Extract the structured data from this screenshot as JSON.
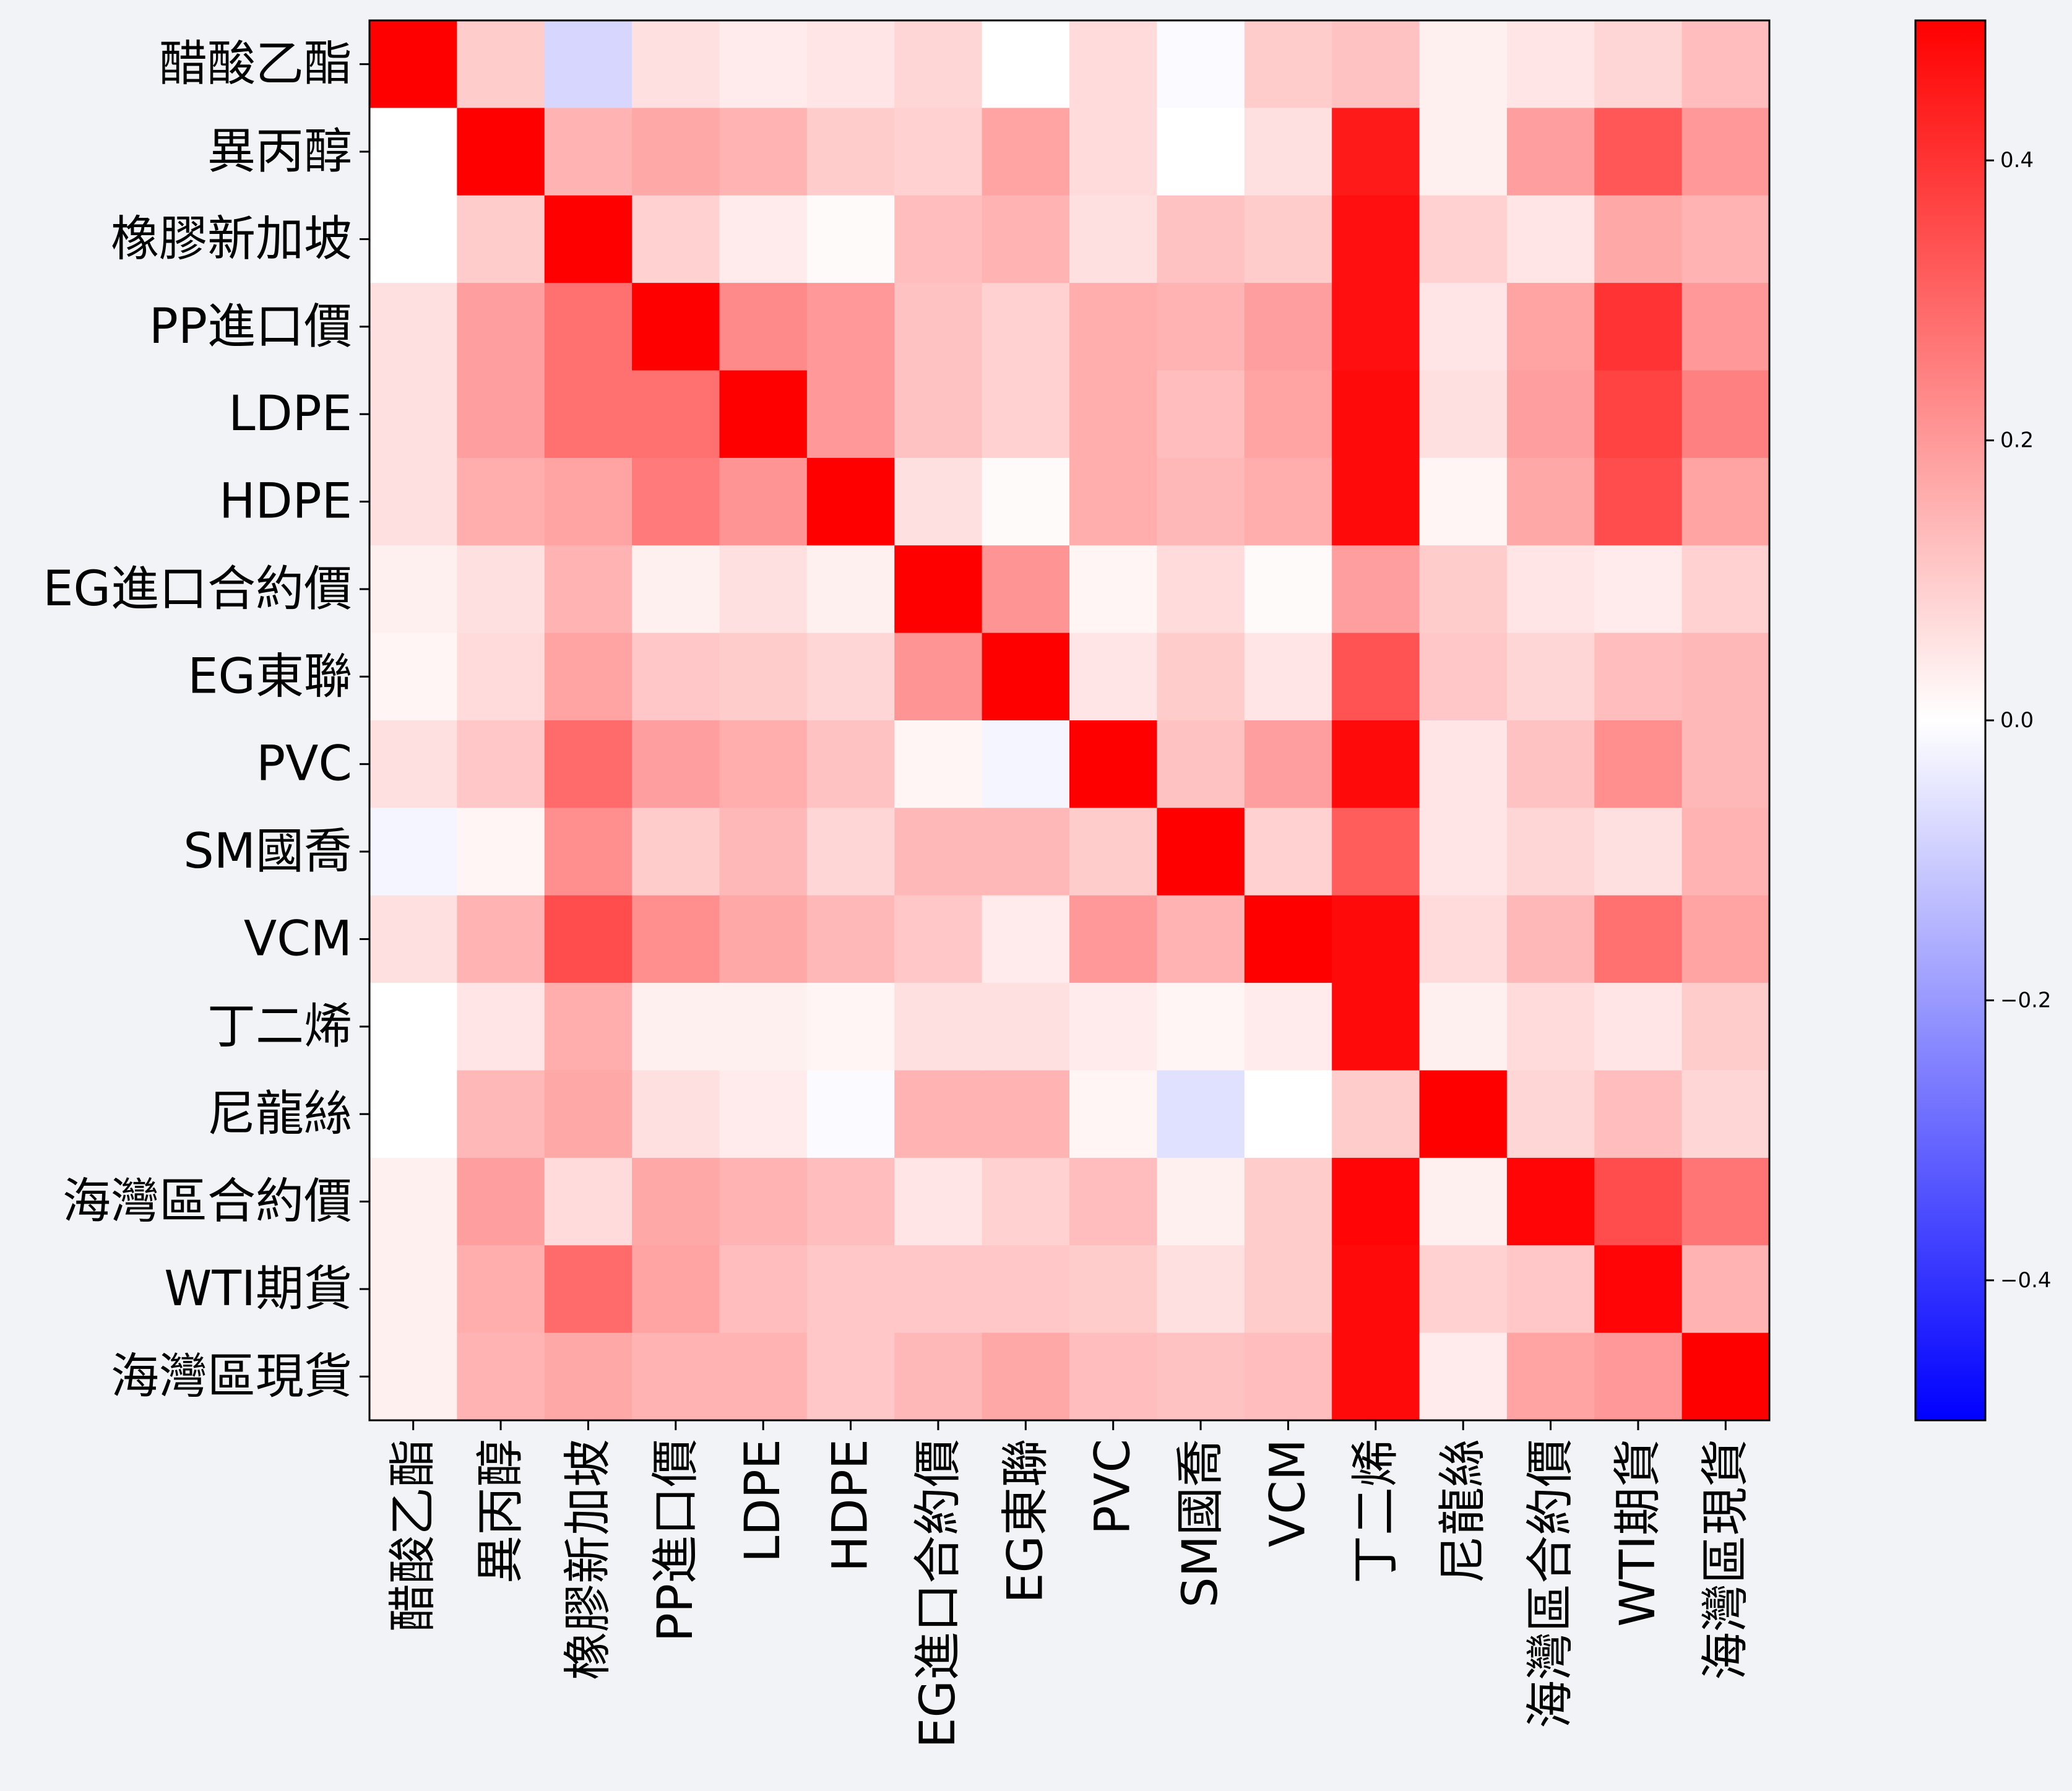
{
  "chart_data": {
    "type": "heatmap",
    "title": "",
    "xlabel": "",
    "ylabel": "",
    "labels": [
      "醋酸乙酯",
      "異丙醇",
      "橡膠新加坡",
      "PP進口價",
      "LDPE",
      "HDPE",
      "EG進口合約價",
      "EG東聯",
      "PVC",
      "SM國喬",
      "VCM",
      "丁二烯",
      "尼龍絲",
      "海灣區合約價",
      "WTI期貨",
      "海灣區現貨"
    ],
    "highlighted_label": "WTI期貨",
    "highlight_color": "#ff0000",
    "colormap": "bwr",
    "colorbar": {
      "range": [
        -0.5,
        0.5
      ],
      "ticks": [
        -0.4,
        -0.2,
        0.0,
        0.2,
        0.4
      ],
      "tick_labels": [
        "−0.4",
        "−0.2",
        "0.0",
        "0.2",
        "0.4"
      ]
    },
    "matrix": [
      [
        0.5,
        0.1,
        -0.08,
        0.06,
        0.04,
        0.05,
        0.08,
        0.0,
        0.07,
        -0.01,
        0.1,
        0.12,
        0.03,
        0.05,
        0.08,
        0.13
      ],
      [
        0.0,
        0.5,
        0.15,
        0.17,
        0.15,
        0.1,
        0.09,
        0.18,
        0.07,
        0.0,
        0.06,
        0.45,
        0.03,
        0.19,
        0.33,
        0.2
      ],
      [
        0.0,
        0.1,
        0.5,
        0.09,
        0.04,
        0.01,
        0.13,
        0.15,
        0.06,
        0.12,
        0.1,
        0.47,
        0.09,
        0.05,
        0.17,
        0.15
      ],
      [
        0.06,
        0.19,
        0.28,
        0.5,
        0.23,
        0.2,
        0.12,
        0.09,
        0.16,
        0.15,
        0.19,
        0.47,
        0.05,
        0.18,
        0.4,
        0.2
      ],
      [
        0.06,
        0.19,
        0.28,
        0.28,
        0.5,
        0.2,
        0.12,
        0.09,
        0.16,
        0.13,
        0.18,
        0.48,
        0.06,
        0.19,
        0.37,
        0.25
      ],
      [
        0.06,
        0.16,
        0.18,
        0.26,
        0.21,
        0.5,
        0.06,
        0.01,
        0.16,
        0.14,
        0.16,
        0.48,
        0.02,
        0.17,
        0.35,
        0.18
      ],
      [
        0.03,
        0.06,
        0.15,
        0.03,
        0.06,
        0.03,
        0.5,
        0.21,
        0.02,
        0.07,
        0.01,
        0.19,
        0.1,
        0.05,
        0.04,
        0.09
      ],
      [
        0.02,
        0.07,
        0.18,
        0.11,
        0.1,
        0.08,
        0.21,
        0.5,
        0.05,
        0.1,
        0.05,
        0.34,
        0.11,
        0.08,
        0.13,
        0.14
      ],
      [
        0.06,
        0.11,
        0.29,
        0.19,
        0.16,
        0.12,
        0.02,
        -0.02,
        0.5,
        0.12,
        0.19,
        0.48,
        0.05,
        0.12,
        0.22,
        0.14
      ],
      [
        -0.02,
        0.02,
        0.22,
        0.1,
        0.14,
        0.08,
        0.14,
        0.14,
        0.1,
        0.5,
        0.09,
        0.32,
        0.05,
        0.08,
        0.06,
        0.15
      ],
      [
        0.06,
        0.15,
        0.35,
        0.22,
        0.17,
        0.14,
        0.11,
        0.04,
        0.2,
        0.15,
        0.5,
        0.48,
        0.07,
        0.14,
        0.28,
        0.18
      ],
      [
        0.0,
        0.05,
        0.16,
        0.03,
        0.03,
        0.02,
        0.06,
        0.06,
        0.04,
        0.02,
        0.04,
        0.48,
        0.03,
        0.07,
        0.05,
        0.1
      ],
      [
        0.0,
        0.14,
        0.17,
        0.06,
        0.04,
        -0.01,
        0.15,
        0.15,
        0.02,
        -0.06,
        0.0,
        0.1,
        0.5,
        0.08,
        0.13,
        0.08
      ],
      [
        0.03,
        0.19,
        0.07,
        0.17,
        0.15,
        0.13,
        0.05,
        0.09,
        0.13,
        0.03,
        0.1,
        0.49,
        0.03,
        0.49,
        0.35,
        0.27
      ],
      [
        0.03,
        0.16,
        0.29,
        0.18,
        0.13,
        0.11,
        0.11,
        0.11,
        0.1,
        0.06,
        0.1,
        0.48,
        0.09,
        0.11,
        0.49,
        0.15
      ],
      [
        0.03,
        0.15,
        0.17,
        0.15,
        0.15,
        0.11,
        0.14,
        0.17,
        0.13,
        0.12,
        0.13,
        0.48,
        0.04,
        0.18,
        0.2,
        0.5
      ]
    ]
  }
}
